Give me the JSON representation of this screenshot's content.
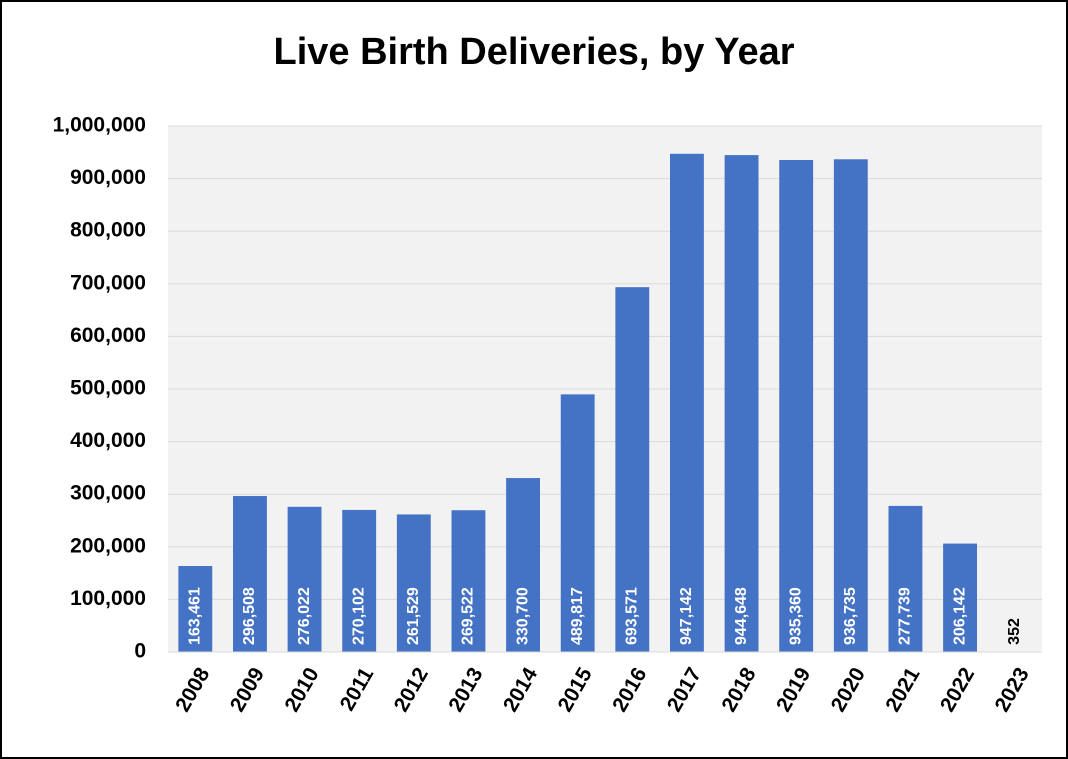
{
  "chart_data": {
    "type": "bar",
    "title": "Live Birth Deliveries, by Year",
    "categories": [
      "2008",
      "2009",
      "2010",
      "2011",
      "2012",
      "2013",
      "2014",
      "2015",
      "2016",
      "2017",
      "2018",
      "2019",
      "2020",
      "2021",
      "2022",
      "2023"
    ],
    "values": [
      163461,
      296508,
      276022,
      270102,
      261529,
      269522,
      330700,
      489817,
      693571,
      947142,
      944648,
      935360,
      936735,
      277739,
      206142,
      352
    ],
    "value_labels": [
      "163,461",
      "296,508",
      "276,022",
      "270,102",
      "261,529",
      "269,522",
      "330,700",
      "489,817",
      "693,571",
      "947,142",
      "944,648",
      "935,360",
      "936,735",
      "277,739",
      "206,142",
      "352"
    ],
    "color": "#4472c4",
    "ylim": [
      0,
      1000000
    ],
    "yticks": [
      0,
      {
        "value": 100000,
        "label": "100,000"
      },
      {
        "value": 200000,
        "label": "200,000"
      },
      {
        "value": 300000,
        "label": "300,000"
      },
      {
        "value": 400000,
        "label": "400,000"
      },
      {
        "value": 500000,
        "label": "500,000"
      },
      {
        "value": 600000,
        "label": "600,000"
      },
      {
        "value": 700000,
        "label": "700,000"
      },
      {
        "value": 800000,
        "label": "800,000"
      },
      {
        "value": 900000,
        "label": "900,000"
      },
      {
        "value": 1000000,
        "label": "1,000,000"
      }
    ],
    "grid": true
  }
}
